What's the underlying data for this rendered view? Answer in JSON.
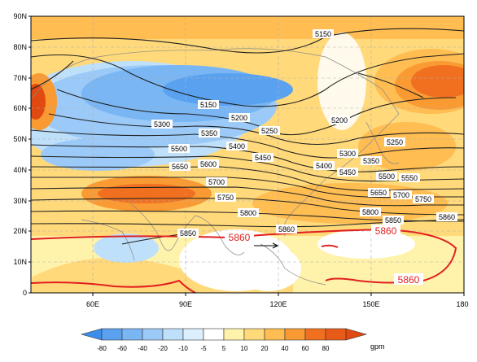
{
  "map": {
    "lat_ticks": [
      "90N",
      "80N",
      "70N",
      "60N",
      "50N",
      "40N",
      "30N",
      "20N",
      "10N",
      "0"
    ],
    "lon_ticks": [
      "60E",
      "90E",
      "120E",
      "150E",
      "180"
    ],
    "extent": {
      "lon": [
        40,
        180
      ],
      "lat": [
        0,
        90
      ]
    }
  },
  "colorbar": {
    "levels": [
      "-80",
      "-60",
      "-40",
      "-20",
      "-10",
      "-5",
      "5",
      "10",
      "20",
      "40",
      "60",
      "80"
    ],
    "unit": "gpm",
    "colors": [
      "#3c8ee8",
      "#5aa2f0",
      "#7ab6f4",
      "#9ccaf8",
      "#bfe0fb",
      "#dcefff",
      "#ffffff",
      "#fff2aa",
      "#ffd97a",
      "#ffbd52",
      "#f99a33",
      "#f07020",
      "#e04a10"
    ]
  },
  "contours": {
    "black_labels": [
      "5150",
      "5150",
      "5200",
      "5200",
      "5250",
      "5250",
      "5300",
      "5300",
      "5350",
      "5350",
      "5400",
      "5400",
      "5450",
      "5450",
      "5500",
      "5500",
      "5550",
      "5600",
      "5650",
      "5650",
      "5700",
      "5700",
      "5750",
      "5750",
      "5800",
      "5800",
      "5850",
      "5850",
      "5860",
      "5860"
    ],
    "red_labels": [
      "5860",
      "5860",
      "5860"
    ],
    "red_color": "#e02020"
  }
}
